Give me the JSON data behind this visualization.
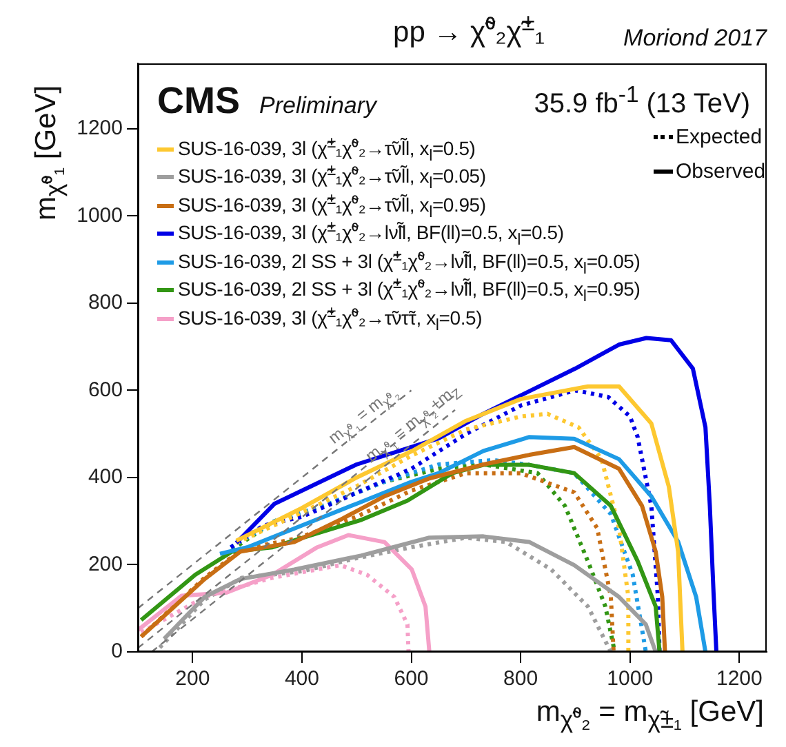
{
  "chart_data": {
    "type": "line",
    "title": "pp → χ̃⁰₂χ̃$^{±}$₁",
    "xlabel": "m$_{χ̃⁰₂}$ = m$_{χ̃±₁}$ [GeV]",
    "ylabel": "m$_{χ̃⁰₁}$ [GeV]",
    "xlim": [
      100,
      1250
    ],
    "ylim": [
      0,
      1350
    ],
    "xticks": [
      200,
      400,
      600,
      800,
      1000,
      1200
    ],
    "yticks": [
      0,
      200,
      400,
      600,
      800,
      1000,
      1200
    ],
    "grid": false,
    "legend": "top left",
    "marker": "none",
    "annotations": [
      "Moriond 2017",
      "CMS",
      "Preliminary",
      "35.9 fb$^{-1}$ (13 TeV)",
      "Expected",
      "Observed",
      "m$_{χ̃⁰₁}$ = m$_{χ̃⁰₂}$",
      "m$_{χ̃⁰₁}$ = m$_{χ̃⁰₂}$+m$_{Z}$"
    ],
    "series": [
      {
        "type": "line",
        "color": "#777777",
        "line_style": "dashed",
        "x": [
          100,
          600
        ],
        "values": [
          100,
          600
        ]
      },
      {
        "type": "line",
        "color": "#777777",
        "line_style": "dashed",
        "x": [
          100,
          680
        ],
        "values": [
          9,
          589
        ]
      },
      {
        "type": "line",
        "color": "#777777",
        "line_style": "dashed",
        "x": [
          125,
          680
        ],
        "values": [
          0,
          555
        ]
      },
      {
        "name": "SUS-16-039, 3l (χ̃$^{±}$₁χ̃⁰₂→τ̃νl̃l, x$_{l}$=0.5)",
        "color": "#fdc830",
        "line_style": "solid",
        "x": [
          280,
          400,
          500,
          600,
          700,
          800,
          923,
          980,
          1039,
          1071,
          1088,
          1096
        ],
        "values": [
          255,
          330,
          400,
          460,
          530,
          580,
          609,
          609,
          524,
          379,
          230,
          0
        ]
      },
      {
        "name": "SUS-16-039, 3l (χ̃$^{±}$₁χ̃⁰₂→τ̃νl̃l, x$_{l}$=0.05)",
        "color": "#9e9e9e",
        "line_style": "solid",
        "x": [
          148,
          222,
          287,
          386,
          509,
          633,
          732,
          816,
          898,
          980,
          1029,
          1047
        ],
        "values": [
          30,
          126,
          167,
          189,
          221,
          262,
          265,
          252,
          199,
          126,
          63,
          0
        ]
      },
      {
        "name": "SUS-16-039, 3l (χ̃$^{±}$₁χ̃⁰₂→τ̃νl̃l, x$_{l}$=0.95)",
        "color": "#c86e14",
        "line_style": "solid",
        "x": [
          106,
          222,
          287,
          386,
          470,
          551,
          633,
          732,
          816,
          898,
          980,
          1022,
          1047,
          1059,
          1064
        ],
        "values": [
          35,
          167,
          230,
          252,
          303,
          357,
          398,
          430,
          452,
          470,
          420,
          335,
          230,
          126,
          0
        ]
      },
      {
        "name": "SUS-16-039, 3l (χ̃$^{±}$₁χ̃⁰₂→lν̃l̃l, BF(ll)=0.5, x$_{l}$=0.5)",
        "color": "#0000e6",
        "line_style": "solid",
        "x": [
          280,
          350,
          500,
          650,
          730,
          900,
          980,
          1030,
          1075,
          1115,
          1138,
          1146,
          1153,
          1158
        ],
        "values": [
          250,
          340,
          430,
          490,
          545,
          650,
          705,
          720,
          715,
          650,
          515,
          335,
          130,
          0
        ]
      },
      {
        "name": "SUS-16-039, 2l SS + 3l (χ̃$^{±}$₁χ̃⁰₂→lν̃l̃l, BF(ll)=0.5, x$_{l}$=0.05)",
        "color": "#1e9be6",
        "line_style": "solid",
        "x": [
          250,
          300,
          400,
          500,
          600,
          650,
          732,
          816,
          898,
          980,
          1039,
          1088,
          1121,
          1138
        ],
        "values": [
          225,
          240,
          290,
          340,
          390,
          410,
          461,
          493,
          489,
          442,
          357,
          253,
          126,
          0
        ]
      },
      {
        "name": "SUS-16-039, 2l SS + 3l (χ̃$^{±}$₁χ̃⁰₂→lν̃l̃l, BF(ll)=0.5, x$_{l}$=0.95)",
        "color": "#329614",
        "line_style": "solid",
        "x": [
          106,
          205,
          272,
          346,
          428,
          509,
          593,
          675,
          732,
          816,
          898,
          965,
          1014,
          1047,
          1054
        ],
        "values": [
          73,
          177,
          230,
          240,
          272,
          303,
          347,
          410,
          429,
          429,
          410,
          335,
          208,
          104,
          0
        ]
      },
      {
        "name": "SUS-16-039, 3l (χ̃$^{±}$₁χ̃⁰₂→τ̃ντ̃τ, x$_{l}$=0.5)",
        "color": "#f5a0c8",
        "line_style": "solid",
        "x": [
          100,
          180,
          262,
          346,
          428,
          485,
          551,
          601,
          626,
          633
        ],
        "values": [
          50,
          129,
          136,
          177,
          240,
          268,
          252,
          189,
          104,
          0
        ]
      },
      {
        "type": "line",
        "color": "#fdc830",
        "line_style": "dotted",
        "x": [
          280,
          400,
          500,
          600,
          700,
          800,
          849,
          906,
          948,
          980,
          997,
          997
        ],
        "values": [
          250,
          320,
          380,
          450,
          510,
          540,
          546,
          515,
          442,
          284,
          126,
          0
        ]
      },
      {
        "type": "line",
        "color": "#9e9e9e",
        "line_style": "dotted",
        "x": [
          140,
          222,
          290,
          400,
          500,
          600,
          700,
          774,
          856,
          923,
          965
        ],
        "values": [
          10,
          120,
          170,
          185,
          215,
          240,
          262,
          252,
          189,
          104,
          0
        ]
      },
      {
        "type": "line",
        "color": "#c86e14",
        "line_style": "dotted",
        "x": [
          106,
          222,
          290,
          390,
          500,
          600,
          700,
          800,
          898,
          940,
          965,
          970
        ],
        "values": [
          35,
          170,
          235,
          260,
          310,
          370,
          410,
          410,
          366,
          284,
          126,
          0
        ]
      },
      {
        "type": "line",
        "color": "#0000e6",
        "line_style": "dotted",
        "x": [
          270,
          330,
          400,
          500,
          600,
          700,
          800,
          900,
          960,
          1000,
          1014,
          1039,
          1051,
          1054
        ],
        "values": [
          240,
          290,
          310,
          365,
          420,
          500,
          565,
          600,
          585,
          540,
          493,
          335,
          126,
          0
        ]
      },
      {
        "type": "line",
        "color": "#1e9be6",
        "line_style": "dotted",
        "x": [
          270,
          350,
          450,
          550,
          650,
          750,
          816,
          898,
          965,
          1005,
          1029
        ],
        "values": [
          240,
          300,
          340,
          390,
          430,
          440,
          429,
          410,
          316,
          177,
          0
        ]
      },
      {
        "type": "line",
        "color": "#329614",
        "line_style": "dotted",
        "x": [
          272,
          350,
          450,
          550,
          650,
          732,
          831,
          881,
          923,
          955,
          972
        ],
        "values": [
          235,
          300,
          340,
          390,
          420,
          430,
          410,
          335,
          208,
          104,
          0
        ]
      },
      {
        "type": "line",
        "color": "#f5a0c8",
        "line_style": "dotted",
        "x": [
          106,
          222,
          346,
          470,
          519,
          569,
          593,
          595
        ],
        "values": [
          45,
          126,
          170,
          199,
          177,
          126,
          63,
          0
        ]
      }
    ]
  }
}
